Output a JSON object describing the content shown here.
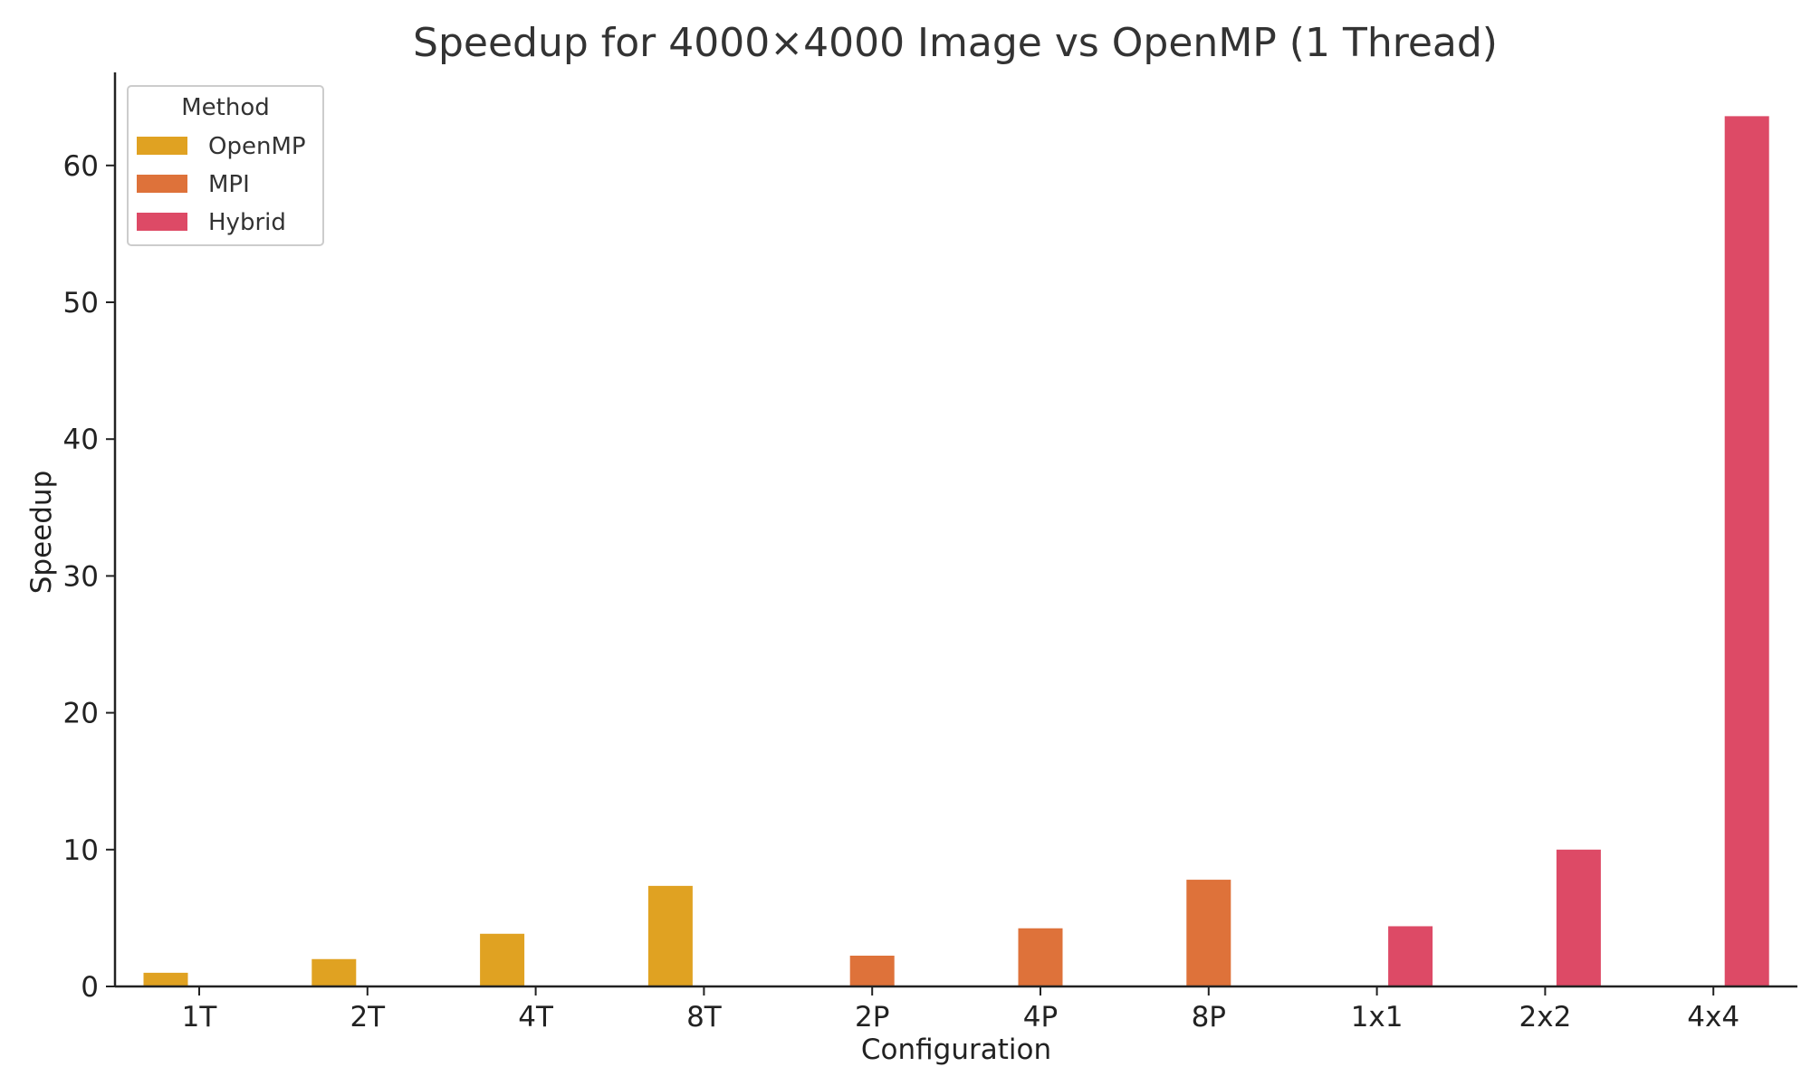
{
  "chart_data": {
    "type": "bar",
    "title": "Speedup for 4000×4000 Image vs OpenMP (1 Thread)",
    "xlabel": "Configuration",
    "ylabel": "Speedup",
    "categories": [
      "1T",
      "2T",
      "4T",
      "8T",
      "2P",
      "4P",
      "8P",
      "1x1",
      "2x2",
      "4x4"
    ],
    "ylim": [
      0,
      66.8
    ],
    "yticks": [
      0,
      10,
      20,
      30,
      40,
      50,
      60
    ],
    "grid": false,
    "legend": {
      "title": "Method",
      "position": "top-left"
    },
    "series": [
      {
        "name": "OpenMP",
        "color": "#E0A222",
        "values": [
          1.0,
          2.0,
          3.85,
          7.35,
          null,
          null,
          null,
          null,
          null,
          null
        ]
      },
      {
        "name": "MPI",
        "color": "#DE723A",
        "values": [
          null,
          null,
          null,
          null,
          2.25,
          4.25,
          7.8,
          null,
          null,
          null
        ]
      },
      {
        "name": "Hybrid",
        "color": "#DD4A66",
        "values": [
          null,
          null,
          null,
          null,
          null,
          null,
          null,
          4.4,
          10.0,
          63.6
        ]
      }
    ]
  }
}
